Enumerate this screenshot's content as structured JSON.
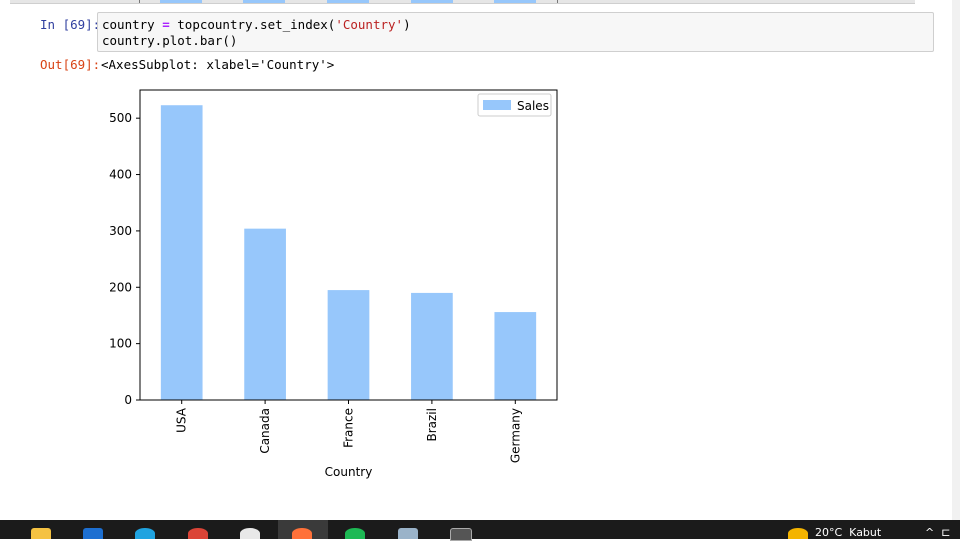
{
  "cell": {
    "in_prompt": "In [69]:",
    "code_lines": [
      {
        "a": "country ",
        "op": "=",
        "b": " topcountry.set_index(",
        "s": "'Country'",
        "c": ")"
      },
      {
        "a": "country.plot.bar()",
        "op": "",
        "b": "",
        "s": "",
        "c": ""
      }
    ],
    "out_prompt": "Out[69]:",
    "out_text": "<AxesSubplot: xlabel='Country'>"
  },
  "colors": {
    "bar": "#97c7fb",
    "in_prompt": "#303f9f",
    "out_prompt": "#d84315",
    "taskbar": "#1b1b1b"
  },
  "chart_data": {
    "type": "bar",
    "categories": [
      "USA",
      "Canada",
      "France",
      "Brazil",
      "Germany"
    ],
    "series": [
      {
        "name": "Sales",
        "values": [
          523,
          304,
          195,
          190,
          156
        ]
      }
    ],
    "xlabel": "Country",
    "ylabel": "",
    "ylim": [
      0,
      550
    ],
    "yticks": [
      0,
      100,
      200,
      300,
      400,
      500
    ],
    "legend": "top-right",
    "grid": false
  },
  "taskbar": {
    "icons": [
      "folder-icon",
      "outlook-icon",
      "skype-icon",
      "chrome-icon",
      "app-icon",
      "firefox-icon",
      "spotify-icon",
      "pen-icon",
      "terminal-icon",
      "weather-icon"
    ],
    "weather_text": "20°C  Kabut",
    "tray_text": "^  ⊏"
  }
}
